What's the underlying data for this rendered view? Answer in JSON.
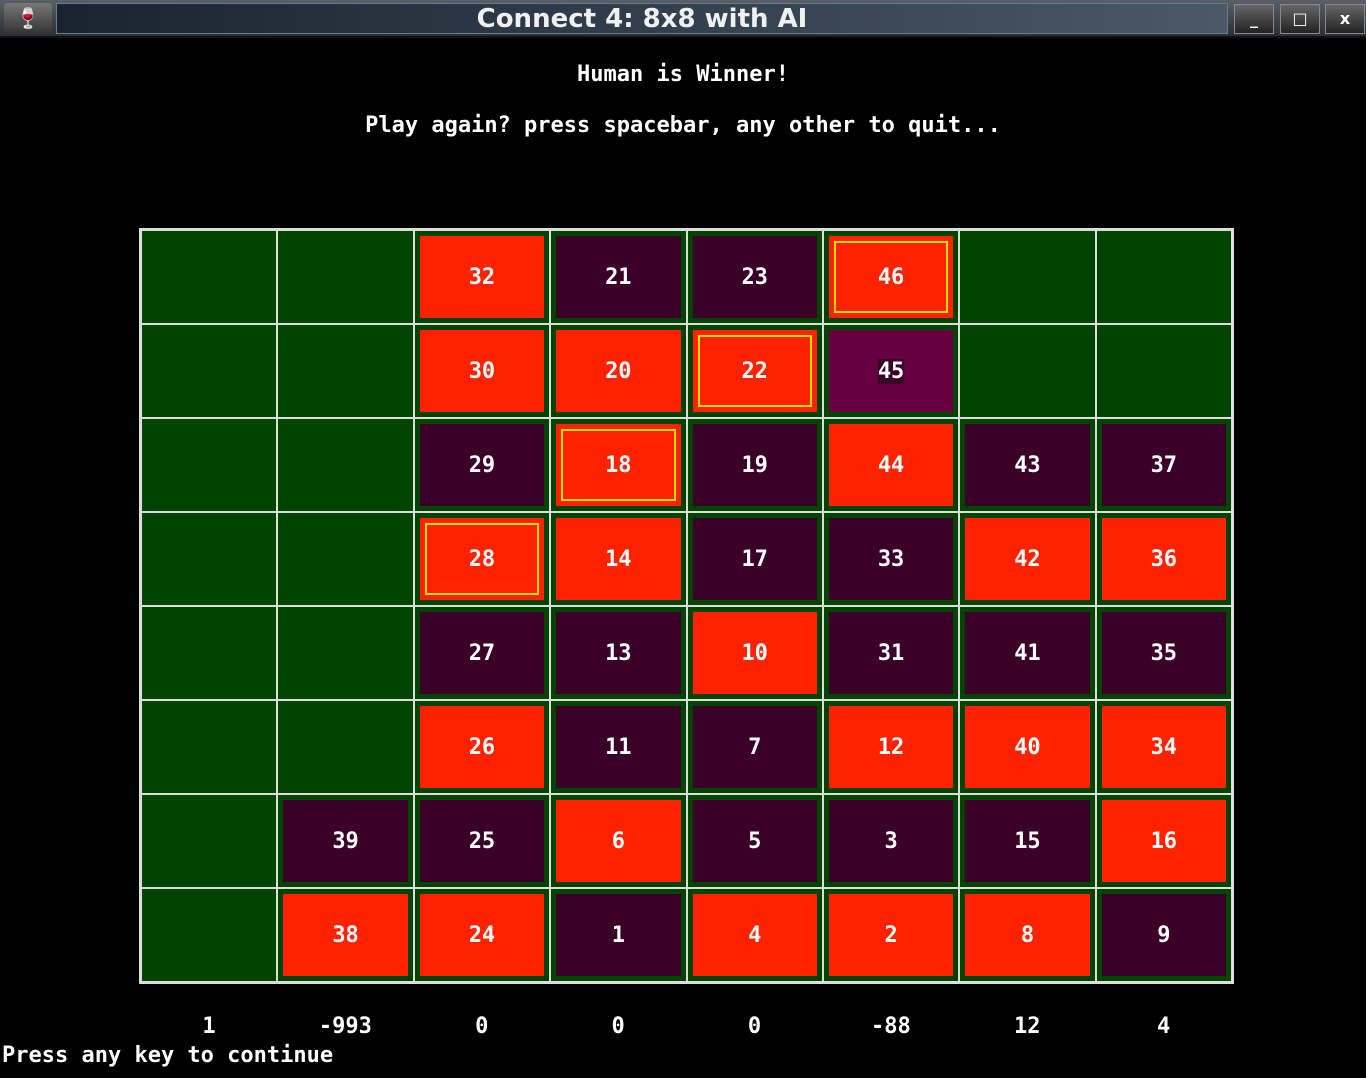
{
  "window": {
    "title": "Connect 4: 8x8 with AI",
    "minimize": "_",
    "maximize": "□",
    "close": "x"
  },
  "status": "Human is Winner!",
  "prompt": "Play again? press spacebar, any other to quit...",
  "footer": "Press any key to continue",
  "colors": {
    "human": "#ff2200",
    "ai": "#3a0028",
    "last_move": "#660040",
    "empty": "#004400",
    "win_outline": "#ffe000"
  },
  "board": [
    [
      null,
      null,
      {
        "n": "32",
        "p": "human"
      },
      {
        "n": "21",
        "p": "ai"
      },
      {
        "n": "23",
        "p": "ai"
      },
      {
        "n": "46",
        "p": "human",
        "win": true
      },
      null,
      null
    ],
    [
      null,
      null,
      {
        "n": "30",
        "p": "human"
      },
      {
        "n": "20",
        "p": "human"
      },
      {
        "n": "22",
        "p": "human",
        "win": true
      },
      {
        "n": "45",
        "p": "last_move"
      },
      null,
      null
    ],
    [
      null,
      null,
      {
        "n": "29",
        "p": "ai"
      },
      {
        "n": "18",
        "p": "human",
        "win": true
      },
      {
        "n": "19",
        "p": "ai"
      },
      {
        "n": "44",
        "p": "human"
      },
      {
        "n": "43",
        "p": "ai"
      },
      {
        "n": "37",
        "p": "ai"
      }
    ],
    [
      null,
      null,
      {
        "n": "28",
        "p": "human",
        "win": true
      },
      {
        "n": "14",
        "p": "human"
      },
      {
        "n": "17",
        "p": "ai"
      },
      {
        "n": "33",
        "p": "ai"
      },
      {
        "n": "42",
        "p": "human"
      },
      {
        "n": "36",
        "p": "human"
      }
    ],
    [
      null,
      null,
      {
        "n": "27",
        "p": "ai"
      },
      {
        "n": "13",
        "p": "ai"
      },
      {
        "n": "10",
        "p": "human"
      },
      {
        "n": "31",
        "p": "ai"
      },
      {
        "n": "41",
        "p": "ai"
      },
      {
        "n": "35",
        "p": "ai"
      }
    ],
    [
      null,
      null,
      {
        "n": "26",
        "p": "human"
      },
      {
        "n": "11",
        "p": "ai"
      },
      {
        "n": "7",
        "p": "ai"
      },
      {
        "n": "12",
        "p": "human"
      },
      {
        "n": "40",
        "p": "human"
      },
      {
        "n": "34",
        "p": "human"
      }
    ],
    [
      null,
      {
        "n": "39",
        "p": "ai"
      },
      {
        "n": "25",
        "p": "ai"
      },
      {
        "n": "6",
        "p": "human"
      },
      {
        "n": "5",
        "p": "ai"
      },
      {
        "n": "3",
        "p": "ai"
      },
      {
        "n": "15",
        "p": "ai"
      },
      {
        "n": "16",
        "p": "human"
      }
    ],
    [
      null,
      {
        "n": "38",
        "p": "human"
      },
      {
        "n": "24",
        "p": "human"
      },
      {
        "n": "1",
        "p": "ai"
      },
      {
        "n": "4",
        "p": "human"
      },
      {
        "n": "2",
        "p": "human"
      },
      {
        "n": "8",
        "p": "human"
      },
      {
        "n": "9",
        "p": "ai"
      }
    ]
  ],
  "column_scores": [
    "1",
    "-993",
    "0",
    "0",
    "0",
    "-88",
    "12",
    "4"
  ]
}
